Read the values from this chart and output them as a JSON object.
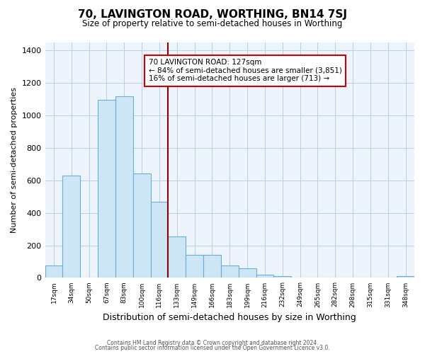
{
  "title": "70, LAVINGTON ROAD, WORTHING, BN14 7SJ",
  "subtitle": "Size of property relative to semi-detached houses in Worthing",
  "xlabel": "Distribution of semi-detached houses by size in Worthing",
  "ylabel": "Number of semi-detached properties",
  "bar_labels": [
    "17sqm",
    "34sqm",
    "50sqm",
    "67sqm",
    "83sqm",
    "100sqm",
    "116sqm",
    "133sqm",
    "149sqm",
    "166sqm",
    "183sqm",
    "199sqm",
    "216sqm",
    "232sqm",
    "249sqm",
    "265sqm",
    "282sqm",
    "298sqm",
    "315sqm",
    "331sqm",
    "348sqm"
  ],
  "bar_values": [
    75,
    630,
    0,
    1095,
    1120,
    645,
    470,
    255,
    140,
    140,
    75,
    60,
    20,
    10,
    0,
    0,
    0,
    0,
    0,
    0,
    10
  ],
  "bar_color": "#cde6f5",
  "bar_edge_color": "#6aadd5",
  "property_line_x": 7.0,
  "property_line_label": "70 LAVINGTON ROAD: 127sqm",
  "annotation_smaller": "← 84% of semi-detached houses are smaller (3,851)",
  "annotation_larger": "16% of semi-detached houses are larger (713) →",
  "annotation_box_color": "#ffffff",
  "annotation_box_edge": "#cc0000",
  "line_color": "#8b0000",
  "ylim": [
    0,
    1450
  ],
  "yticks": [
    0,
    200,
    400,
    600,
    800,
    1000,
    1200,
    1400
  ],
  "footer1": "Contains HM Land Registry data © Crown copyright and database right 2024.",
  "footer2": "Contains public sector information licensed under the Open Government Licence v3.0.",
  "bg_color": "#eef4fb"
}
